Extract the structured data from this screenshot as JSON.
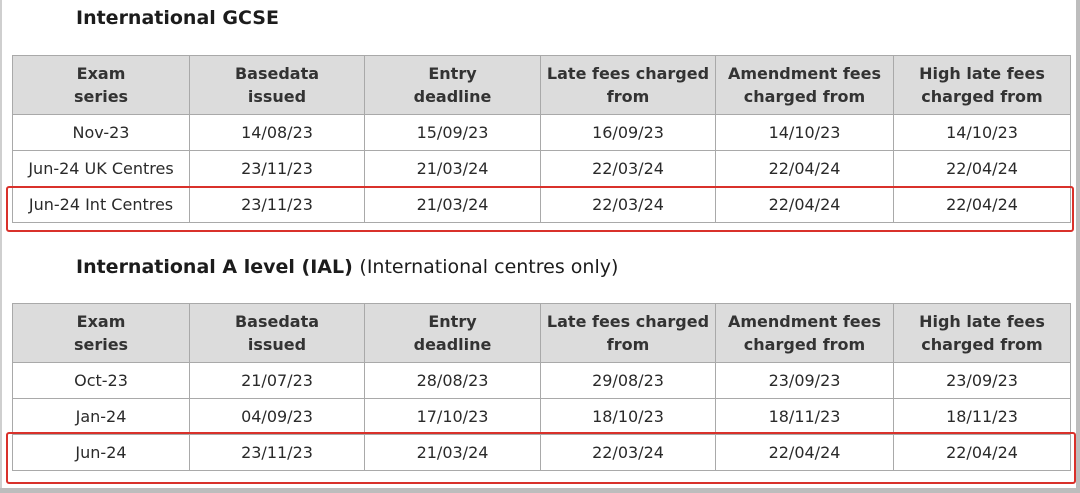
{
  "gcse": {
    "title": "International GCSE",
    "subtitle": "",
    "headers": [
      [
        "Exam",
        "series"
      ],
      [
        "Basedata",
        "issued"
      ],
      [
        "Entry",
        "deadline"
      ],
      [
        "Late fees charged",
        "from"
      ],
      [
        "Amendment fees",
        "charged from"
      ],
      [
        "High late fees",
        "charged from"
      ]
    ],
    "rows": [
      [
        "Nov-23",
        "14/08/23",
        "15/09/23",
        "16/09/23",
        "14/10/23",
        "14/10/23"
      ],
      [
        "Jun-24 UK Centres",
        "23/11/23",
        "21/03/24",
        "22/03/24",
        "22/04/24",
        "22/04/24"
      ],
      [
        "Jun-24 Int Centres",
        "23/11/23",
        "21/03/24",
        "22/03/24",
        "22/04/24",
        "22/04/24"
      ]
    ],
    "highlighted_row": 2
  },
  "ial": {
    "title": "International A level (IAL)",
    "subtitle": "(International centres only)",
    "headers": [
      [
        "Exam",
        "series"
      ],
      [
        "Basedata",
        "issued"
      ],
      [
        "Entry",
        "deadline"
      ],
      [
        "Late fees charged",
        "from"
      ],
      [
        "Amendment fees",
        "charged from"
      ],
      [
        "High late fees",
        "charged from"
      ]
    ],
    "rows": [
      [
        "Oct-23",
        "21/07/23",
        "28/08/23",
        "29/08/23",
        "23/09/23",
        "23/09/23"
      ],
      [
        "Jan-24",
        "04/09/23",
        "17/10/23",
        "18/10/23",
        "18/11/23",
        "18/11/23"
      ],
      [
        "Jun-24",
        "23/11/23",
        "21/03/24",
        "22/03/24",
        "22/04/24",
        "22/04/24"
      ]
    ],
    "highlighted_row": 2
  },
  "colors": {
    "header_bg": "#dcdcdc",
    "border": "#a9a9a9",
    "highlight": "#d9312b"
  }
}
